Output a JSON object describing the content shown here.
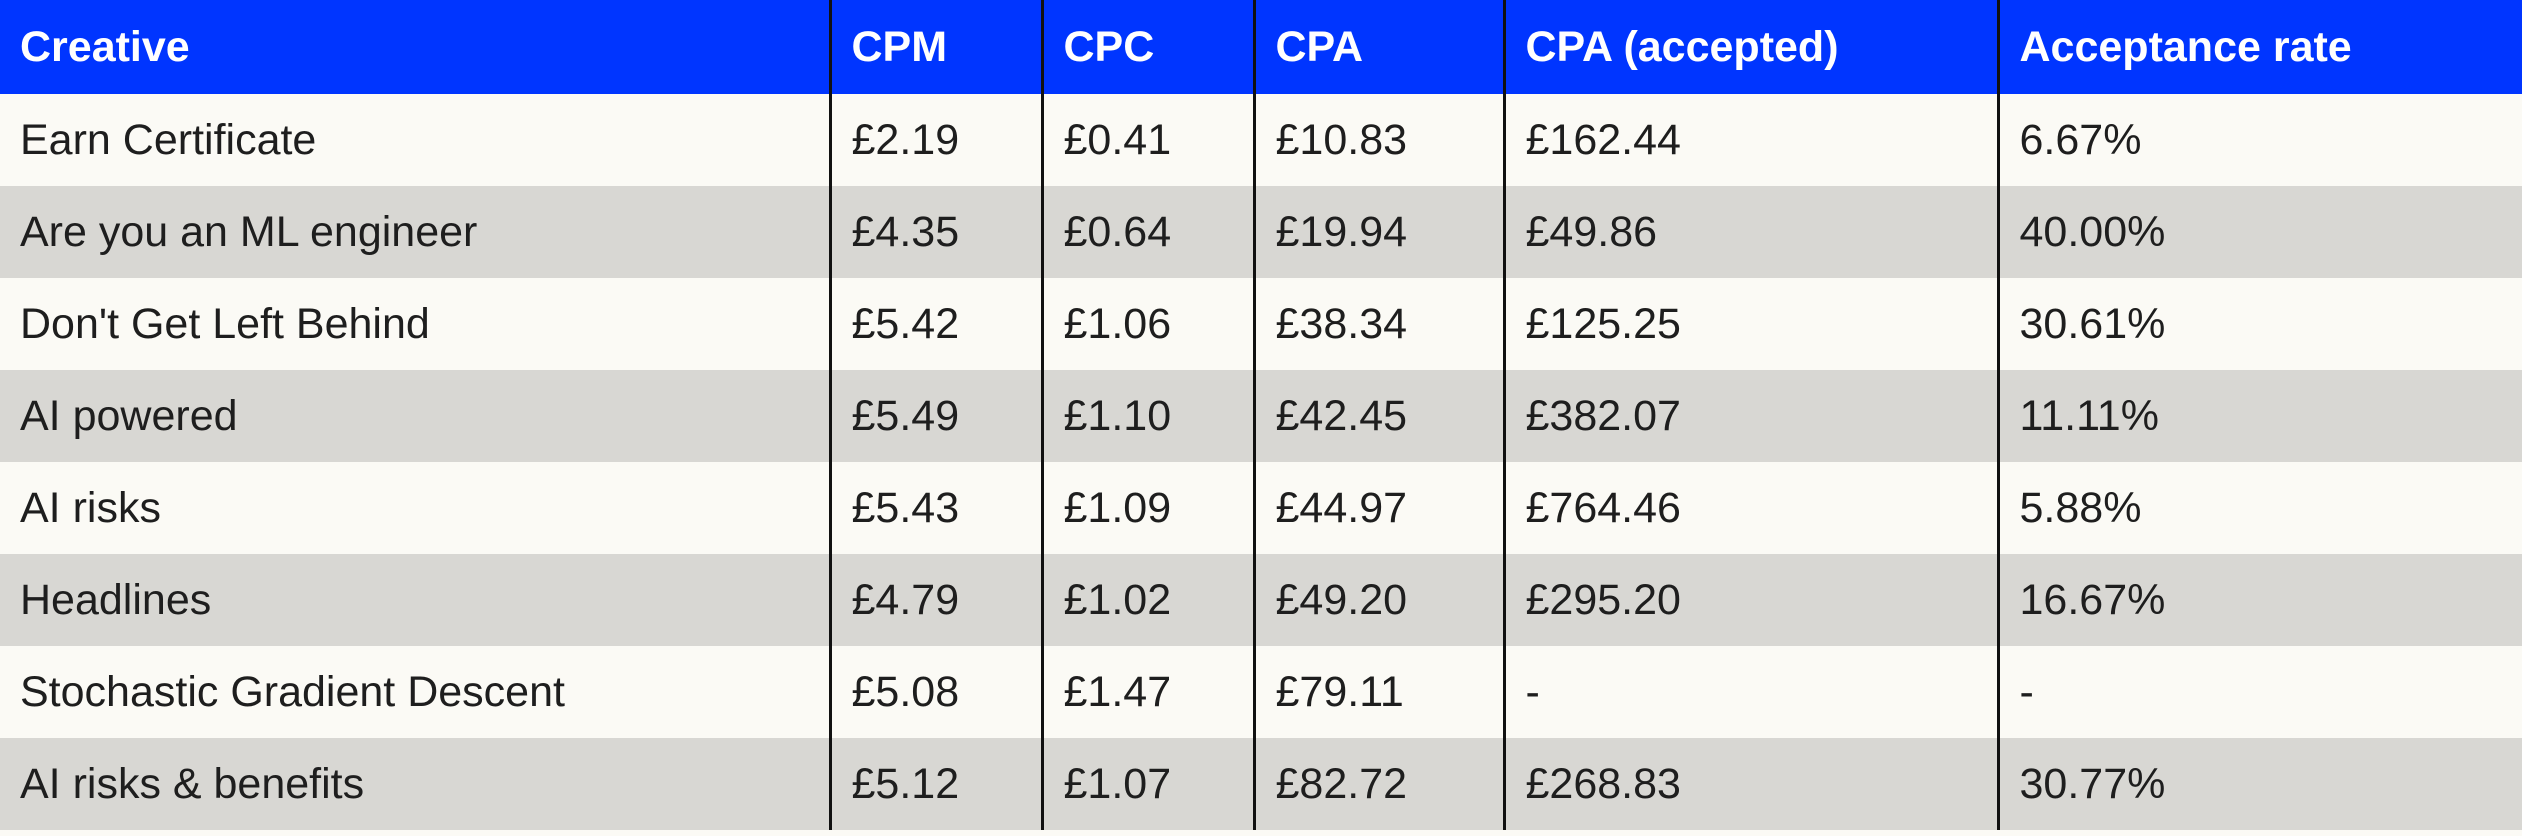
{
  "table": {
    "columns": [
      "Creative",
      "CPM",
      "CPC",
      "CPA",
      "CPA (accepted)",
      "Acceptance rate"
    ],
    "rows": [
      [
        "Earn Certificate",
        "£2.19",
        "£0.41",
        "£10.83",
        "£162.44",
        "6.67%"
      ],
      [
        "Are you an ML engineer",
        "£4.35",
        "£0.64",
        "£19.94",
        "£49.86",
        "40.00%"
      ],
      [
        "Don't Get Left Behind",
        "£5.42",
        "£1.06",
        "£38.34",
        "£125.25",
        "30.61%"
      ],
      [
        "AI powered",
        "£5.49",
        "£1.10",
        "£42.45",
        "£382.07",
        "11.11%"
      ],
      [
        "AI risks",
        "£5.43",
        "£1.09",
        "£44.97",
        "£764.46",
        "5.88%"
      ],
      [
        "Headlines",
        "£4.79",
        "£1.02",
        "£49.20",
        "£295.20",
        "16.67%"
      ],
      [
        "Stochastic Gradient Descent",
        "£5.08",
        "£1.47",
        "£79.11",
        "-",
        "-"
      ],
      [
        "AI risks & benefits",
        "£5.12",
        "£1.07",
        "£82.72",
        "£268.83",
        "30.77%"
      ]
    ]
  },
  "colors": {
    "header_bg": "#0035ff",
    "header_text": "#ffffff",
    "row_odd": "#fbfaf5",
    "row_even": "#d8d7d3",
    "divider": "#111111"
  }
}
